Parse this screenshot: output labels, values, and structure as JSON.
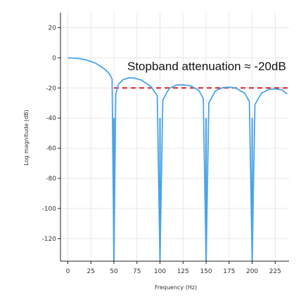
{
  "chart_data": {
    "type": "line",
    "title": "",
    "xlabel": "Frequency (Hz)",
    "ylabel": "Log magnitude (dB)",
    "xlim": [
      -8,
      240
    ],
    "ylim": [
      -135,
      30
    ],
    "x_ticks": [
      0,
      25,
      50,
      75,
      100,
      125,
      150,
      175,
      200,
      225
    ],
    "y_ticks": [
      20,
      0,
      -20,
      -40,
      -60,
      -80,
      -100,
      -120
    ],
    "grid": true,
    "series": [
      {
        "color": "#4aa3e8",
        "kind": "sinc magnitude response",
        "nulls_hz": [
          50,
          100,
          150,
          200
        ],
        "null_depth_db": -135,
        "points": [
          [
            0,
            0
          ],
          [
            10,
            -0.3
          ],
          [
            20,
            -1.4
          ],
          [
            30,
            -3.5
          ],
          [
            40,
            -7.5
          ],
          [
            45,
            -10.5
          ],
          [
            48,
            -14
          ],
          [
            52,
            -24
          ],
          [
            55,
            -17.5
          ],
          [
            60,
            -14.5
          ],
          [
            66,
            -13.3
          ],
          [
            72,
            -13.4
          ],
          [
            80,
            -14.8
          ],
          [
            90,
            -19
          ],
          [
            97,
            -25
          ],
          [
            103,
            -28
          ],
          [
            110,
            -20.3
          ],
          [
            118,
            -18
          ],
          [
            125,
            -17.9
          ],
          [
            133,
            -18.5
          ],
          [
            142,
            -21.5
          ],
          [
            147,
            -27
          ],
          [
            153,
            -30
          ],
          [
            160,
            -22
          ],
          [
            168,
            -19.8
          ],
          [
            175,
            -19.5
          ],
          [
            182,
            -20
          ],
          [
            192,
            -23.5
          ],
          [
            197,
            -29
          ],
          [
            203,
            -31
          ],
          [
            210,
            -23.5
          ],
          [
            218,
            -21
          ],
          [
            225,
            -20.6
          ],
          [
            232,
            -21.2
          ],
          [
            238,
            -24
          ]
        ]
      }
    ],
    "reference_line": {
      "y": -20,
      "x_start": 50,
      "x_end": 240,
      "color": "#d62020",
      "style": "dashed"
    },
    "annotation": {
      "text": "Stopband attenuation ≈ -20dB"
    }
  }
}
